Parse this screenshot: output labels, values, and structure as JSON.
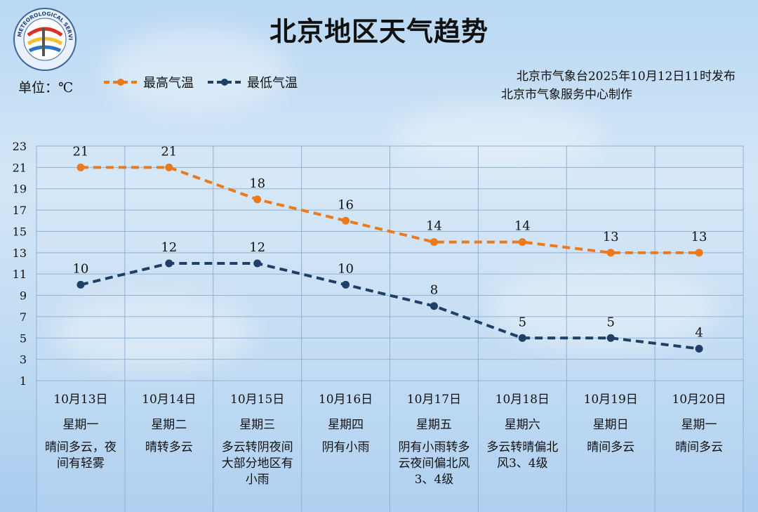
{
  "header": {
    "title": "北京地区天气趋势",
    "unit": "单位：℃",
    "publisher": "北京市气象台2025年10月12日11时发布",
    "producer": "北京市气象服务中心制作",
    "logo_text": "METEOROLOGICAL SERVICE"
  },
  "legend": {
    "high_label": "最高气温",
    "low_label": "最低气温"
  },
  "colors": {
    "high": "#ec7a1c",
    "low": "#1e3f66",
    "grid": "#8fb1d4"
  },
  "chart_data": {
    "type": "line",
    "categories": [
      "10月13日",
      "10月14日",
      "10月15日",
      "10月16日",
      "10月17日",
      "10月18日",
      "10月19日",
      "10月20日"
    ],
    "series": [
      {
        "name": "最高气温",
        "values": [
          21,
          21,
          18,
          16,
          14,
          14,
          13,
          13
        ]
      },
      {
        "name": "最低气温",
        "values": [
          10,
          12,
          12,
          10,
          8,
          5,
          5,
          4
        ]
      }
    ],
    "ylim": [
      1,
      23
    ],
    "yticks": [
      "23",
      "21",
      "19",
      "17",
      "15",
      "13",
      "11",
      "9",
      "7",
      "5",
      "3",
      "1"
    ],
    "grid": true,
    "legend_position": "top-left"
  },
  "days": [
    {
      "date": "10月13日",
      "weekday": "星期一",
      "weather": "晴间多云，夜间有轻雾"
    },
    {
      "date": "10月14日",
      "weekday": "星期二",
      "weather": "晴转多云"
    },
    {
      "date": "10月15日",
      "weekday": "星期三",
      "weather": "多云转阴夜间大部分地区有小雨"
    },
    {
      "date": "10月16日",
      "weekday": "星期四",
      "weather": "阴有小雨"
    },
    {
      "date": "10月17日",
      "weekday": "星期五",
      "weather": "阴有小雨转多云夜间偏北风3、4级"
    },
    {
      "date": "10月18日",
      "weekday": "星期六",
      "weather": "多云转晴偏北风3、4级"
    },
    {
      "date": "10月19日",
      "weekday": "星期日",
      "weather": "晴间多云"
    },
    {
      "date": "10月20日",
      "weekday": "星期一",
      "weather": "晴间多云"
    }
  ]
}
